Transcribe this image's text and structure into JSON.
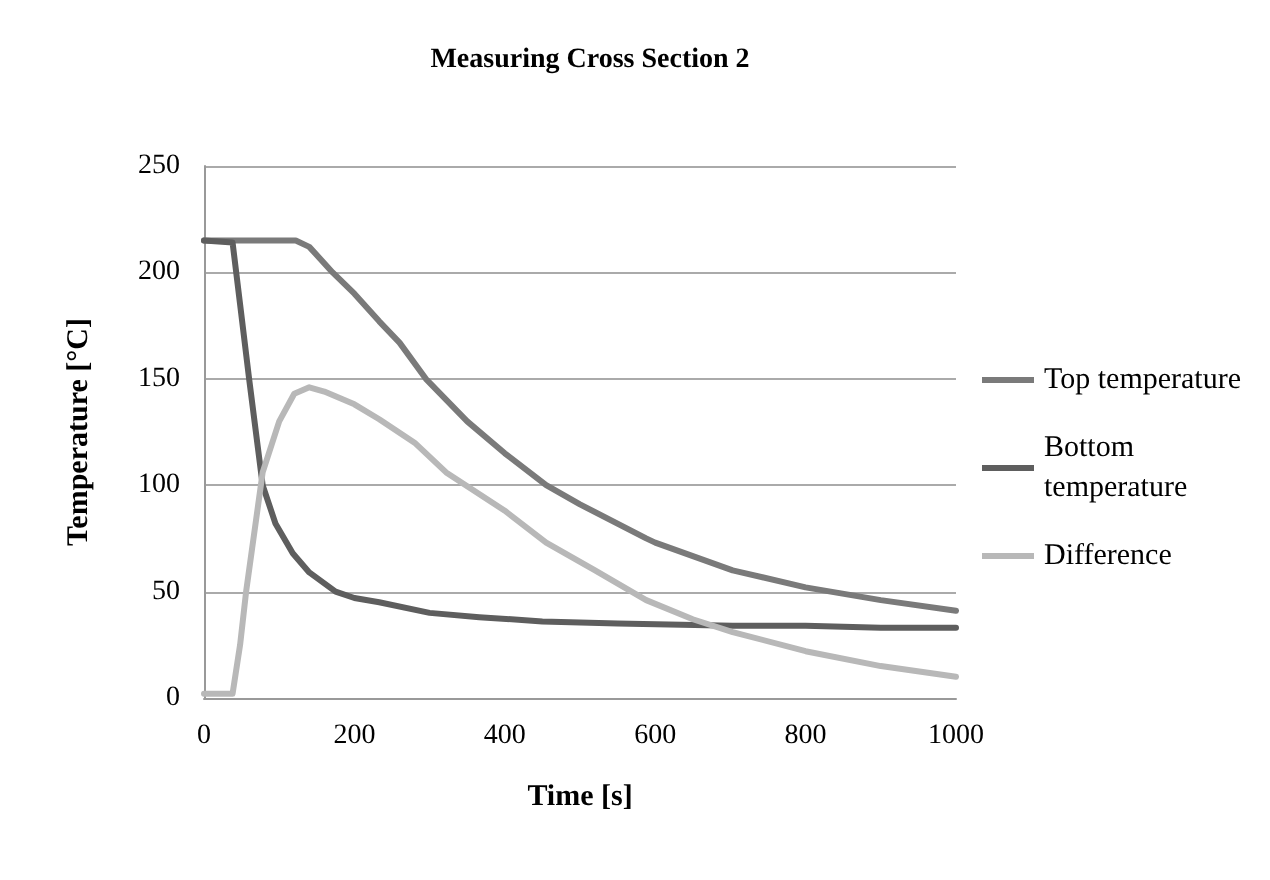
{
  "chart_data": {
    "type": "line",
    "title": "Measuring Cross Section 2",
    "xlabel": "Time [s]",
    "ylabel": "Temperature [°C]",
    "xlim": [
      0,
      1000
    ],
    "xticks": [
      0,
      200,
      400,
      600,
      800,
      1000
    ],
    "ylim": [
      0,
      250
    ],
    "yticks": [
      0,
      50,
      100,
      150,
      200,
      250
    ],
    "grid": "y",
    "legend": "right",
    "marker": "none",
    "line_style": "solid",
    "series": [
      {
        "name": "Top temperature",
        "color": "#7a7a7a",
        "x": [
          0,
          40,
          80,
          122,
          140,
          171,
          200,
          233,
          260,
          295,
          350,
          400,
          455,
          500,
          588,
          600,
          703,
          800,
          900,
          1000
        ],
        "values": [
          215,
          215,
          215,
          215,
          212,
          200,
          190,
          177,
          167,
          150,
          130,
          115,
          100,
          91,
          75,
          73,
          60,
          52,
          46,
          41
        ]
      },
      {
        "name": "Bottom temperature",
        "color": "#5e5e5e",
        "x": [
          0,
          38,
          48,
          60,
          78,
          95,
          118,
          140,
          175,
          200,
          233,
          300,
          366,
          450,
          550,
          703,
          800,
          900,
          1000
        ],
        "values": [
          215,
          214,
          185,
          150,
          100,
          82,
          68,
          59,
          50,
          47,
          45,
          40,
          38,
          36,
          35,
          34,
          34,
          33,
          33
        ]
      },
      {
        "name": "Difference",
        "color": "#b8b8b8",
        "x": [
          0,
          38,
          48,
          56,
          78,
          100,
          120,
          140,
          160,
          200,
          233,
          280,
          322,
          400,
          455,
          520,
          588,
          650,
          703,
          800,
          900,
          1000
        ],
        "values": [
          2,
          2,
          25,
          50,
          106,
          130,
          143,
          146,
          144,
          138,
          131,
          120,
          106,
          88,
          73,
          60,
          46,
          37,
          31,
          22,
          15,
          10
        ]
      }
    ]
  }
}
